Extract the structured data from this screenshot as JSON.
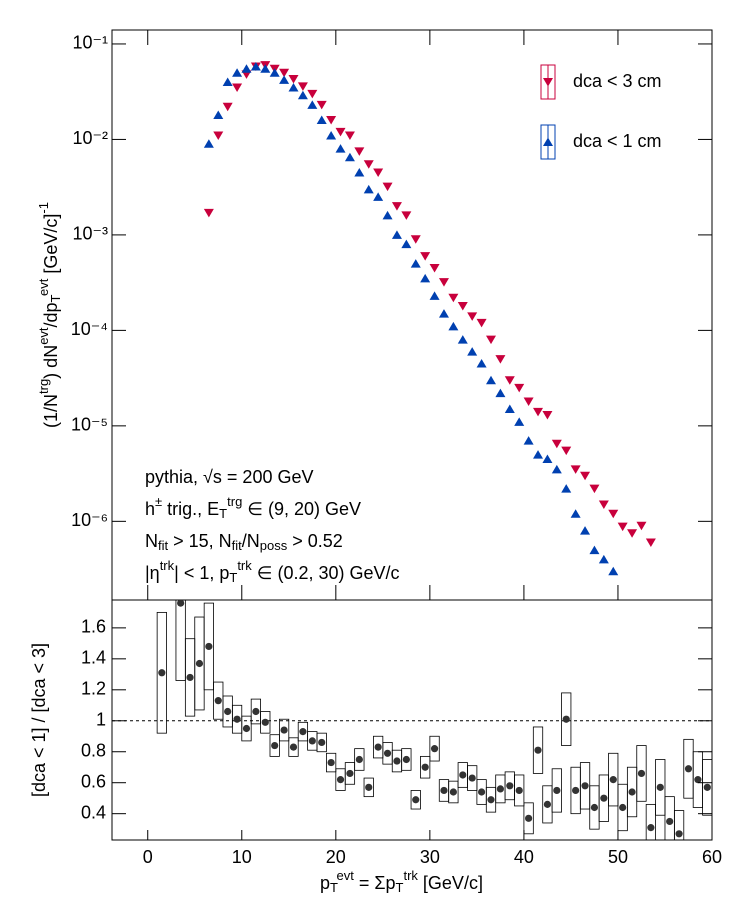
{
  "chart_data": [
    {
      "type": "scatter",
      "log_y": true,
      "legend": "upper right",
      "y_label": [
        [
          "(1/N",
          ""
        ],
        [
          "trg",
          "sup"
        ],
        [
          ") dN",
          ""
        ],
        [
          "evt",
          "sup"
        ],
        [
          "/dp",
          ""
        ],
        [
          "T",
          "sub"
        ],
        [
          "evt",
          "sup"
        ],
        [
          " [GeV/c]",
          ""
        ],
        [
          "-1",
          "sup"
        ]
      ],
      "annotations": [
        [
          [
            "pythia, √s = 200 GeV",
            ""
          ]
        ],
        [
          [
            "h",
            ""
          ],
          [
            "±",
            "sup"
          ],
          [
            " trig., E",
            ""
          ],
          [
            "T",
            "sub"
          ],
          [
            "trg",
            "sup"
          ],
          [
            " ∈ (9, 20) GeV",
            ""
          ]
        ],
        [
          [
            "N",
            ""
          ],
          [
            "fit",
            "sub"
          ],
          [
            " > 15, N",
            ""
          ],
          [
            "fit",
            "sub"
          ],
          [
            "/N",
            ""
          ],
          [
            "poss",
            "sub"
          ],
          [
            " > 0.52",
            ""
          ]
        ],
        [
          [
            "|η",
            ""
          ],
          [
            "trk",
            "sup"
          ],
          [
            "| < 1, p",
            ""
          ],
          [
            "T",
            "sub"
          ],
          [
            "trk",
            "sup"
          ],
          [
            " ∈ (0.2, 30) GeV/c",
            ""
          ]
        ]
      ],
      "x": [
        6.5,
        7.5,
        8.5,
        9.5,
        10.5,
        11.5,
        12.5,
        13.5,
        14.5,
        15.5,
        16.5,
        17.5,
        18.5,
        19.5,
        20.5,
        21.5,
        22.5,
        23.5,
        24.5,
        25.5,
        26.5,
        27.5,
        28.5,
        29.5,
        30.5,
        31.5,
        32.5,
        33.5,
        34.5,
        35.5,
        36.5,
        37.5,
        38.5,
        39.5,
        40.5,
        41.5,
        42.5,
        43.5,
        44.5,
        45.5,
        46.5,
        47.5,
        48.5,
        49.5,
        50.5,
        51.5,
        52.5,
        53.5
      ],
      "series": [
        {
          "name": "dca < 3 cm",
          "color": "#c8003c",
          "marker": "down",
          "values": [
            0.0017,
            0.011,
            0.022,
            0.035,
            0.048,
            0.058,
            0.06,
            0.055,
            0.05,
            0.043,
            0.036,
            0.03,
            0.023,
            0.016,
            0.012,
            0.011,
            0.0075,
            0.0055,
            0.0045,
            0.0032,
            0.002,
            0.0016,
            0.0009,
            0.0006,
            0.00045,
            0.00032,
            0.00022,
            0.00018,
            0.00014,
            0.00012,
            8e-05,
            5e-05,
            3e-05,
            2.5e-05,
            1.8e-05,
            1.4e-05,
            1.3e-05,
            6.5e-06,
            5.5e-06,
            3.5e-06,
            3e-06,
            2.2e-06,
            1.5e-06,
            1.2e-06,
            8.8e-07,
            7.5e-07,
            9e-07,
            6e-07
          ]
        },
        {
          "name": "dca < 1 cm",
          "color": "#0040b0",
          "marker": "up",
          "values": [
            0.009,
            0.018,
            0.04,
            0.05,
            0.055,
            0.058,
            0.055,
            0.05,
            0.042,
            0.035,
            0.029,
            0.023,
            0.016,
            0.011,
            0.008,
            0.0065,
            0.0045,
            0.003,
            0.0025,
            0.0016,
            0.001,
            0.0008,
            0.0005,
            0.00035,
            0.00023,
            0.00015,
            0.00011,
            8e-05,
            6e-05,
            4.5e-05,
            3e-05,
            2.2e-05,
            1.5e-05,
            1.1e-05,
            7e-06,
            5e-06,
            4.5e-06,
            3.5e-06,
            2.2e-06,
            1.2e-06,
            8e-07,
            5e-07,
            4e-07,
            3e-07,
            null,
            null,
            null,
            null
          ]
        }
      ],
      "xlim": [
        -3.8,
        60
      ],
      "ylim": [
        1.5e-07,
        0.14
      ],
      "yticks": [
        {
          "value": 0.1,
          "label": "10⁻¹"
        },
        {
          "value": 0.01,
          "label": "10⁻²"
        },
        {
          "value": 0.001,
          "label": "10⁻³"
        },
        {
          "value": 0.0001,
          "label": "10⁻⁴"
        },
        {
          "value": 1e-05,
          "label": "10⁻⁵"
        },
        {
          "value": 1e-06,
          "label": "10⁻⁶"
        }
      ]
    },
    {
      "type": "scatter",
      "color": "#333333",
      "y_label": [
        [
          "[dca < 1] / [dca < 3]",
          ""
        ]
      ],
      "x_label": [
        [
          "p",
          ""
        ],
        [
          "T",
          "sub"
        ],
        [
          "evt",
          "sup"
        ],
        [
          " = Σp",
          ""
        ],
        [
          "T",
          "sub"
        ],
        [
          "trk",
          "sup"
        ],
        [
          " [GeV/c]",
          ""
        ]
      ],
      "reference_line": 1,
      "x": [
        1.5,
        2.5,
        3.5,
        4.5,
        5.5,
        6.5,
        7.5,
        8.5,
        9.5,
        10.5,
        11.5,
        12.5,
        13.5,
        14.5,
        15.5,
        16.5,
        17.5,
        18.5,
        19.5,
        20.5,
        21.5,
        22.5,
        23.5,
        24.5,
        25.5,
        26.5,
        27.5,
        28.5,
        29.5,
        30.5,
        31.5,
        32.5,
        33.5,
        34.5,
        35.5,
        36.5,
        37.5,
        38.5,
        39.5,
        40.5,
        41.5,
        42.5,
        43.5,
        44.5,
        45.5,
        46.5,
        47.5,
        48.5,
        49.5,
        50.5,
        51.5,
        52.5,
        53.5,
        54.5,
        55.5,
        56.5,
        57.5,
        58.5,
        59.5
      ],
      "values": [
        1.31,
        null,
        1.76,
        1.28,
        1.37,
        1.48,
        1.13,
        1.06,
        1.01,
        0.95,
        1.06,
        0.99,
        0.84,
        0.94,
        0.83,
        0.93,
        0.87,
        0.86,
        0.73,
        0.62,
        0.66,
        0.75,
        0.57,
        0.83,
        0.79,
        0.74,
        0.75,
        0.49,
        0.7,
        0.82,
        0.55,
        0.54,
        0.65,
        0.63,
        0.54,
        0.49,
        0.56,
        0.58,
        0.55,
        0.37,
        0.81,
        0.46,
        0.55,
        1.01,
        0.55,
        0.58,
        0.44,
        0.5,
        0.62,
        0.44,
        0.54,
        0.66,
        0.31,
        0.57,
        0.35,
        0.27,
        0.69,
        0.62,
        0.57
      ],
      "errors": [
        0.39,
        null,
        0.5,
        0.25,
        0.3,
        0.28,
        0.12,
        0.1,
        0.09,
        0.08,
        0.08,
        0.07,
        0.07,
        0.07,
        0.06,
        0.06,
        0.06,
        0.06,
        0.06,
        0.07,
        0.07,
        0.07,
        0.06,
        0.07,
        0.07,
        0.07,
        0.07,
        0.06,
        0.07,
        0.08,
        0.07,
        0.07,
        0.08,
        0.08,
        0.08,
        0.08,
        0.09,
        0.09,
        0.1,
        0.1,
        0.15,
        0.12,
        0.14,
        0.17,
        0.15,
        0.15,
        0.14,
        0.15,
        0.17,
        0.15,
        0.16,
        0.18,
        0.15,
        0.18,
        0.16,
        0.15,
        0.19,
        0.18,
        0.18
      ],
      "xlim": [
        -3.8,
        60
      ],
      "ylim": [
        0.23,
        1.78
      ],
      "xticks": [
        0,
        10,
        20,
        30,
        40,
        50,
        60
      ],
      "yticks": [
        0.4,
        0.6,
        0.8,
        1,
        1.2,
        1.4,
        1.6
      ]
    }
  ]
}
